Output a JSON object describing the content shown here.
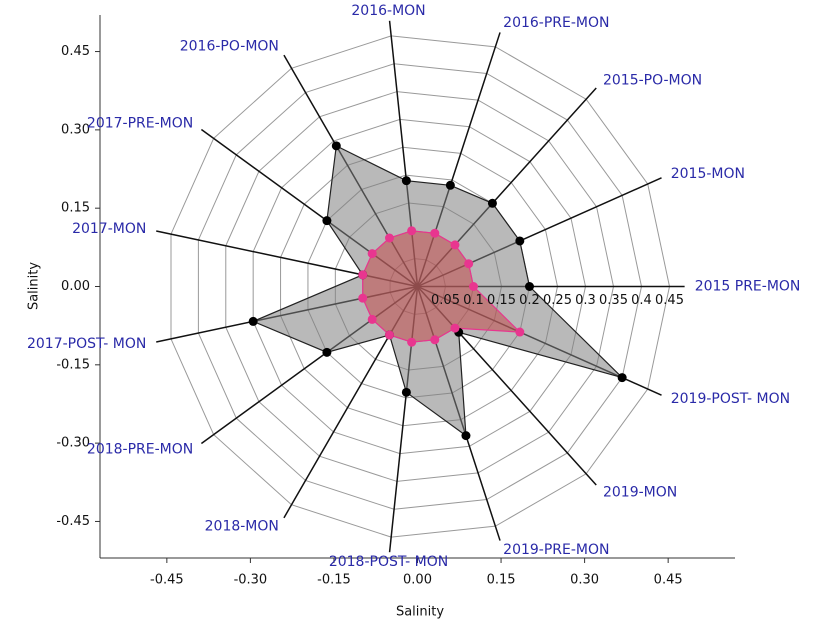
{
  "chart_data": {
    "type": "radar",
    "x_label": "Salinity",
    "y_label": "Salinity",
    "xlim": [
      -0.57,
      0.57
    ],
    "ylim": [
      -0.52,
      0.52
    ],
    "xticks": [
      {
        "value": -0.45,
        "label": "-0.45"
      },
      {
        "value": -0.3,
        "label": "-0.30"
      },
      -0.15,
      {
        "value": 0,
        "label": "0.00"
      },
      0.15,
      {
        "value": 0.3,
        "label": "0.30"
      },
      0.45
    ],
    "yticks": [
      0.45,
      {
        "value": 0.3,
        "label": "0.30"
      },
      0.15,
      {
        "value": 0,
        "label": "0.00"
      },
      -0.15,
      {
        "value": -0.3,
        "label": "-0.30"
      },
      -0.45
    ],
    "rlim": [
      0,
      0.45
    ],
    "rticks": [
      0.05,
      0.1,
      0.15,
      0.2,
      0.25,
      0.3,
      0.35,
      0.4,
      0.45
    ],
    "categories": [
      "2015 PRE-MON",
      "2015-MON",
      "2015-PO-MON",
      "2016-PRE-MON",
      "2016-MON",
      "2016-PO-MON",
      "2017-PRE-MON",
      "2017-MON",
      "2017-POST- MON",
      "2018-PRE-MON",
      "2018-MON",
      "2018-POST- MON",
      "2019-PRE-MON",
      "2019-MON",
      "2019-POST- MON"
    ],
    "series": [
      {
        "color": "#808080",
        "marker_color": "#000000",
        "values": [
          0.2,
          0.2,
          0.2,
          0.19,
          0.19,
          0.29,
          0.2,
          0.1,
          0.3,
          0.2,
          0.1,
          0.19,
          0.28,
          0.11,
          0.4
        ]
      },
      {
        "color": "#c24a4a",
        "marker_color": "#e8368f",
        "values": [
          0.1,
          0.1,
          0.1,
          0.1,
          0.1,
          0.1,
          0.1,
          0.1,
          0.1,
          0.1,
          0.1,
          0.1,
          0.1,
          0.1,
          0.2
        ]
      }
    ]
  }
}
